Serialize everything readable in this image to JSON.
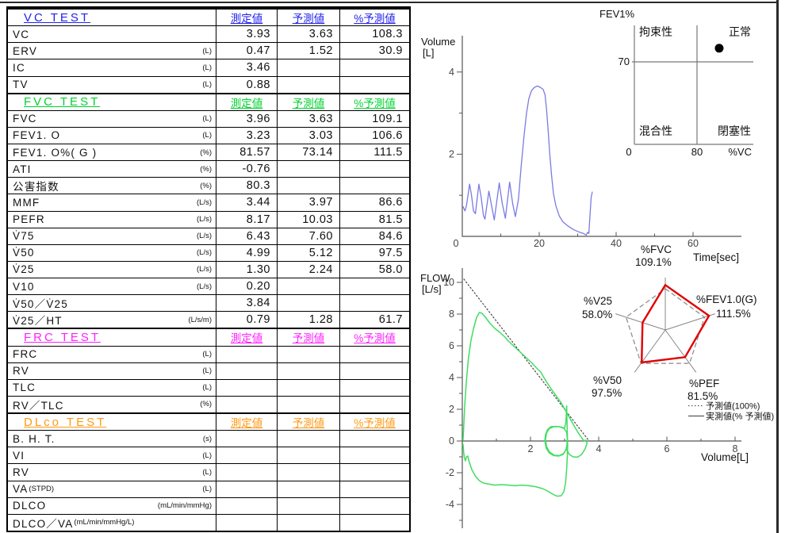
{
  "table": {
    "columns": [
      "測定値",
      "予測値",
      "%予測値"
    ],
    "sections": [
      {
        "title": "VC  TEST",
        "color": "#2222ee",
        "rows": [
          {
            "label": "VC",
            "sub": "",
            "unit": "",
            "measured": "3.93",
            "predicted": "3.63",
            "percent": "108.3"
          },
          {
            "label": "ERV",
            "sub": "",
            "unit": "(L)",
            "measured": "0.47",
            "predicted": "1.52",
            "percent": "30.9"
          },
          {
            "label": "IC",
            "sub": "",
            "unit": "(L)",
            "measured": "3.46",
            "predicted": "",
            "percent": ""
          },
          {
            "label": "TV",
            "sub": "",
            "unit": "(L)",
            "measured": "0.88",
            "predicted": "",
            "percent": ""
          }
        ]
      },
      {
        "title": "FVC  TEST",
        "color": "#00d32f",
        "rows": [
          {
            "label": "FVC",
            "sub": "",
            "unit": "(L)",
            "measured": "3.96",
            "predicted": "3.63",
            "percent": "109.1"
          },
          {
            "label": "FEV1. O",
            "sub": "",
            "unit": "(L)",
            "measured": "3.23",
            "predicted": "3.03",
            "percent": "106.6"
          },
          {
            "label": "FEV1. O%( G )",
            "sub": "",
            "unit": "(%)",
            "measured": "81.57",
            "predicted": "73.14",
            "percent": "111.5"
          },
          {
            "label": "ATI",
            "sub": "",
            "unit": "(%)",
            "measured": "-0.76",
            "predicted": "",
            "percent": ""
          },
          {
            "label": "公害指数",
            "sub": "",
            "unit": "(%)",
            "measured": "80.3",
            "predicted": "",
            "percent": ""
          },
          {
            "label": "MMF",
            "sub": "",
            "unit": "(L/s)",
            "measured": "3.44",
            "predicted": "3.97",
            "percent": "86.6"
          },
          {
            "label": "PEFR",
            "sub": "",
            "unit": "(L/s)",
            "measured": "8.17",
            "predicted": "10.03",
            "percent": "81.5"
          },
          {
            "label": "V̇75",
            "sub": "",
            "unit": "(L/s)",
            "measured": "6.43",
            "predicted": "7.60",
            "percent": "84.6"
          },
          {
            "label": "V̇50",
            "sub": "",
            "unit": "(L/s)",
            "measured": "4.99",
            "predicted": "5.12",
            "percent": "97.5"
          },
          {
            "label": "V̇25",
            "sub": "",
            "unit": "(L/s)",
            "measured": "1.30",
            "predicted": "2.24",
            "percent": "58.0"
          },
          {
            "label": "V10",
            "sub": "",
            "unit": "(L/s)",
            "measured": "0.20",
            "predicted": "",
            "percent": ""
          },
          {
            "label": "V̇50／V̇25",
            "sub": "",
            "unit": "",
            "measured": "3.84",
            "predicted": "",
            "percent": ""
          },
          {
            "label": "V̇25／HT",
            "sub": "",
            "unit": "(L/s/m)",
            "measured": "0.79",
            "predicted": "1.28",
            "percent": "61.7"
          }
        ]
      },
      {
        "title": "FRC  TEST",
        "color": "#ff22ff",
        "rows": [
          {
            "label": "FRC",
            "sub": "",
            "unit": "(L)",
            "measured": "",
            "predicted": "",
            "percent": ""
          },
          {
            "label": "RV",
            "sub": "",
            "unit": "(L)",
            "measured": "",
            "predicted": "",
            "percent": ""
          },
          {
            "label": "TLC",
            "sub": "",
            "unit": "(L)",
            "measured": "",
            "predicted": "",
            "percent": ""
          },
          {
            "label": "RV／TLC",
            "sub": "",
            "unit": "(%)",
            "measured": "",
            "predicted": "",
            "percent": ""
          }
        ]
      },
      {
        "title": "DLco  TEST",
        "color": "#ff9914",
        "rows": [
          {
            "label": "B. H. T.",
            "sub": "",
            "unit": "(s)",
            "measured": "",
            "predicted": "",
            "percent": ""
          },
          {
            "label": "VI",
            "sub": "",
            "unit": "(L)",
            "measured": "",
            "predicted": "",
            "percent": ""
          },
          {
            "label": "RV",
            "sub": "",
            "unit": "(L)",
            "measured": "",
            "predicted": "",
            "percent": ""
          },
          {
            "label": "VA",
            "sub": "(STPD)",
            "unit": "(L)",
            "measured": "",
            "predicted": "",
            "percent": ""
          },
          {
            "label": "DLCO",
            "sub": "",
            "unit": "(mL/min/mmHg)",
            "measured": "",
            "predicted": "",
            "percent": ""
          },
          {
            "label": "DLCO／VA",
            "sub": "(mL/min/mmHg/L)",
            "unit": "",
            "measured": "",
            "predicted": "",
            "percent": ""
          }
        ]
      }
    ]
  },
  "chart_data": [
    {
      "id": "volume_time",
      "type": "line",
      "ylabel_lines": [
        "Volume",
        "[L]"
      ],
      "xlabel": "Time[sec]",
      "xticks": [
        0,
        20,
        40,
        60
      ],
      "xminor": [
        10,
        30,
        50
      ],
      "yticks": [
        2,
        4
      ],
      "yminor": [
        1,
        3
      ],
      "xlim": [
        0,
        72
      ],
      "ylim": [
        0,
        4.9
      ],
      "series": [
        {
          "name": "volume-curve",
          "color": "#7b7be2",
          "points": [
            [
              0.2,
              0.72
            ],
            [
              0.7,
              0.62
            ],
            [
              1.1,
              0.75
            ],
            [
              1.9,
              1.27
            ],
            [
              2.4,
              1.0
            ],
            [
              2.9,
              0.62
            ],
            [
              3.4,
              0.55
            ],
            [
              4.3,
              1.27
            ],
            [
              4.9,
              0.95
            ],
            [
              5.5,
              0.5
            ],
            [
              5.9,
              0.42
            ],
            [
              6.9,
              1.1
            ],
            [
              7.6,
              0.75
            ],
            [
              8.3,
              0.4
            ],
            [
              9.6,
              1.3
            ],
            [
              10.4,
              0.8
            ],
            [
              11.2,
              0.44
            ],
            [
              12.3,
              1.32
            ],
            [
              13.1,
              0.8
            ],
            [
              13.8,
              0.48
            ],
            [
              14.6,
              0.9
            ],
            [
              15.3,
              1.7
            ],
            [
              16.0,
              2.4
            ],
            [
              16.7,
              3.0
            ],
            [
              17.3,
              3.35
            ],
            [
              18.0,
              3.55
            ],
            [
              18.8,
              3.63
            ],
            [
              19.6,
              3.66
            ],
            [
              20.4,
              3.62
            ],
            [
              21.0,
              3.58
            ],
            [
              21.5,
              3.45
            ],
            [
              21.9,
              3.1
            ],
            [
              22.3,
              2.6
            ],
            [
              22.7,
              2.05
            ],
            [
              23.2,
              1.5
            ],
            [
              23.7,
              1.05
            ],
            [
              24.3,
              0.75
            ],
            [
              25.2,
              0.5
            ],
            [
              26.2,
              0.35
            ],
            [
              27.5,
              0.25
            ],
            [
              29.0,
              0.16
            ],
            [
              30.5,
              0.1
            ],
            [
              31.5,
              0.07
            ],
            [
              32.2,
              0.03
            ],
            [
              32.6,
              0.1
            ],
            [
              32.9,
              0.07
            ],
            [
              33.1,
              0.35
            ],
            [
              33.5,
              0.95
            ],
            [
              33.8,
              1.08
            ]
          ]
        }
      ]
    },
    {
      "id": "fev1_quadrant",
      "type": "scatter",
      "title": "FEV1%",
      "xlabel": "%VC",
      "xticks": [
        0,
        80
      ],
      "ytick": 70,
      "xlim": [
        0,
        152
      ],
      "ylim": [
        0,
        101
      ],
      "quadrant_labels": {
        "top_left": "拘束性",
        "top_right": "正常",
        "bottom_left": "混合性",
        "bottom_right": "閉塞性"
      },
      "point": {
        "x": 108.3,
        "y": 81.57
      }
    },
    {
      "id": "flow_volume",
      "type": "line",
      "ylabel_lines": [
        "FLOW",
        "[L/s]"
      ],
      "xlabel": "Volume[L]",
      "xticks": [
        2,
        4,
        6,
        8
      ],
      "yticks": [
        -4,
        -2,
        0,
        2,
        4,
        6,
        8,
        10
      ],
      "xlim": [
        0,
        8.2
      ],
      "ylim": [
        -5.4,
        10.9
      ],
      "series": [
        {
          "name": "predicted-line",
          "style": "dotted",
          "color": "#444",
          "segments": [
            [
              [
                0.05,
                10.2
              ],
              [
                3.72,
                0
              ]
            ]
          ]
        },
        {
          "name": "flow-loop",
          "style": "solid",
          "color": "#3fdd60",
          "segments": [
            [
              [
                0.02,
                0.05
              ],
              [
                0.04,
                0.8
              ],
              [
                0.07,
                2.2
              ],
              [
                0.12,
                3.8
              ],
              [
                0.18,
                5.2
              ],
              [
                0.25,
                6.3
              ],
              [
                0.33,
                7.1
              ],
              [
                0.42,
                7.8
              ],
              [
                0.5,
                8.1
              ],
              [
                0.58,
                8.05
              ],
              [
                0.68,
                7.8
              ],
              [
                0.8,
                7.45
              ],
              [
                0.95,
                7.1
              ],
              [
                1.1,
                6.85
              ],
              [
                1.25,
                6.55
              ],
              [
                1.35,
                6.3
              ],
              [
                1.5,
                6.0
              ],
              [
                1.7,
                5.6
              ],
              [
                1.9,
                5.2
              ],
              [
                2.05,
                4.9
              ],
              [
                2.2,
                4.55
              ],
              [
                2.3,
                4.35
              ],
              [
                2.38,
                4.05
              ],
              [
                2.48,
                3.7
              ],
              [
                2.6,
                3.3
              ],
              [
                2.75,
                2.85
              ],
              [
                2.9,
                2.4
              ],
              [
                3.05,
                1.85
              ],
              [
                3.2,
                1.25
              ],
              [
                3.32,
                0.8
              ],
              [
                3.42,
                0.45
              ],
              [
                3.5,
                0.2
              ],
              [
                3.56,
                0.02
              ]
            ],
            [
              [
                0.02,
                -0.2
              ],
              [
                0.04,
                -0.7
              ],
              [
                0.06,
                -1.05
              ],
              [
                0.09,
                -1.25
              ],
              [
                0.12,
                -1.0
              ],
              [
                0.16,
                -0.95
              ],
              [
                0.2,
                -1.3
              ],
              [
                0.28,
                -1.8
              ],
              [
                0.38,
                -2.2
              ],
              [
                0.5,
                -2.5
              ],
              [
                0.62,
                -2.65
              ],
              [
                0.78,
                -2.72
              ],
              [
                0.95,
                -2.78
              ],
              [
                1.15,
                -2.75
              ],
              [
                1.35,
                -2.78
              ],
              [
                1.55,
                -2.82
              ],
              [
                1.75,
                -2.78
              ],
              [
                1.95,
                -2.82
              ],
              [
                2.15,
                -2.88
              ],
              [
                2.35,
                -3.0
              ],
              [
                2.5,
                -3.15
              ],
              [
                2.65,
                -3.35
              ],
              [
                2.78,
                -3.48
              ],
              [
                2.9,
                -3.45
              ],
              [
                2.98,
                -3.2
              ],
              [
                3.03,
                -2.6
              ],
              [
                3.06,
                -1.8
              ],
              [
                3.08,
                -1.0
              ],
              [
                3.09,
                -0.3
              ],
              [
                3.08,
                0.5
              ],
              [
                3.07,
                1.3
              ],
              [
                3.06,
                2.2
              ]
            ],
            [
              [
                3.06,
                2.2
              ],
              [
                3.04,
                1.2
              ],
              [
                3.0,
                0.8
              ],
              [
                2.9,
                0.88
              ],
              [
                2.75,
                0.92
              ],
              [
                2.6,
                0.9
              ],
              [
                2.5,
                0.72
              ],
              [
                2.44,
                0.4
              ],
              [
                2.42,
                0.0
              ],
              [
                2.46,
                -0.45
              ],
              [
                2.55,
                -0.75
              ],
              [
                2.68,
                -0.92
              ],
              [
                2.82,
                -0.95
              ],
              [
                2.95,
                -0.85
              ],
              [
                3.03,
                -0.6
              ],
              [
                3.07,
                -0.25
              ],
              [
                3.08,
                0.15
              ],
              [
                3.06,
                0.55
              ],
              [
                2.98,
                0.8
              ],
              [
                2.85,
                0.9
              ],
              [
                2.68,
                0.9
              ],
              [
                2.55,
                0.78
              ],
              [
                2.47,
                0.5
              ],
              [
                2.44,
                0.1
              ],
              [
                2.47,
                -0.35
              ],
              [
                2.56,
                -0.7
              ],
              [
                2.7,
                -0.9
              ],
              [
                2.85,
                -0.92
              ],
              [
                2.98,
                -0.78
              ],
              [
                3.05,
                -0.5
              ],
              [
                3.08,
                -0.6
              ],
              [
                3.14,
                -0.85
              ],
              [
                3.25,
                -1.0
              ],
              [
                3.38,
                -1.02
              ],
              [
                3.5,
                -0.85
              ],
              [
                3.6,
                -0.5
              ],
              [
                3.66,
                -0.15
              ],
              [
                3.63,
                0.05
              ],
              [
                3.56,
                0.02
              ]
            ]
          ]
        }
      ]
    },
    {
      "id": "radar",
      "type": "radar",
      "reference": 100,
      "axes": [
        {
          "label": "%FVC",
          "value": 109.1
        },
        {
          "label": "%FEV1.0(G)",
          "value": 111.5
        },
        {
          "label": "%PEF",
          "value": 81.5
        },
        {
          "label": "%V50",
          "value": 97.5
        },
        {
          "label": "%V25",
          "value": 58.0
        }
      ],
      "colors": {
        "measured": "#e10000",
        "grid": "#888"
      },
      "legend": [
        {
          "style": "dotted",
          "label": "予測値(100%)"
        },
        {
          "style": "solid",
          "label": "実測値(% 予測値)"
        }
      ]
    }
  ]
}
